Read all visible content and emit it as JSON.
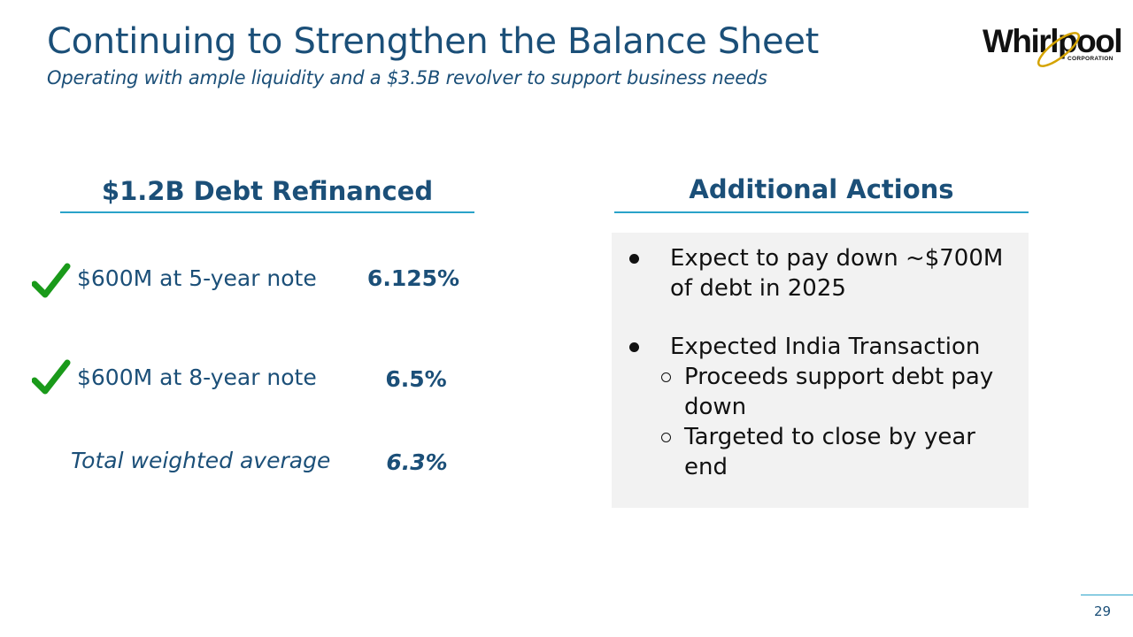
{
  "header": {
    "title": "Continuing to Strengthen the Balance Sheet",
    "subtitle": "Operating with ample liquidity and a $3.5B revolver to support business needs"
  },
  "logo": {
    "wordmark": "Whirlpool",
    "corporation": "CORPORATION",
    "brand_color": "#111111",
    "swoosh_color": "#d4a300"
  },
  "left_panel": {
    "heading": "$1.2B Debt Refinanced",
    "rows": [
      {
        "label": "$600M at 5-year note",
        "value": "6.125%",
        "checked": true
      },
      {
        "label": "$600M at 8-year note",
        "value": "6.5%",
        "checked": true
      }
    ],
    "total": {
      "label": "Total weighted average",
      "value": "6.3%"
    }
  },
  "right_panel": {
    "heading": "Additional Actions",
    "bullets": [
      {
        "text_line1": "Expect to pay down ~$700M",
        "text_line2": "of debt in 2025"
      },
      {
        "text": "Expected India Transaction"
      }
    ],
    "sub_bullets": [
      {
        "text_line1": "Proceeds support debt pay",
        "text_line2": "down"
      },
      {
        "text_line1": "Targeted to close by year",
        "text_line2": "end"
      }
    ]
  },
  "footer": {
    "page_number": "29"
  },
  "colors": {
    "title": "#1b4f78",
    "accent_rule": "#2aa3c9",
    "check": "#1a9a1a",
    "box_bg": "#f2f2f2"
  }
}
